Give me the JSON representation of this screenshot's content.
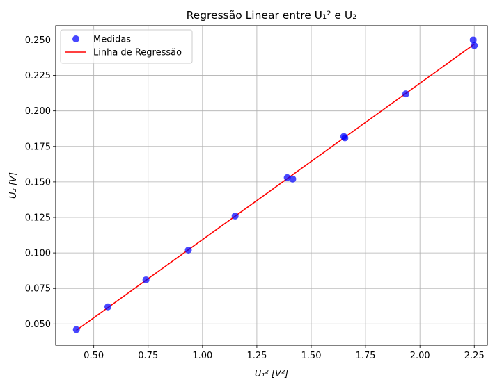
{
  "chart_data": {
    "type": "scatter",
    "title": "Regressão Linear entre U₁² e U₂",
    "xlabel": "U₁² [V²]",
    "ylabel": "U₂ [V]",
    "xlim": [
      0.325,
      2.31
    ],
    "ylim": [
      0.035,
      0.26
    ],
    "xticks": [
      "0.50",
      "0.75",
      "1.00",
      "1.25",
      "1.50",
      "1.75",
      "2.00",
      "2.25"
    ],
    "xtick_values": [
      0.5,
      0.75,
      1.0,
      1.25,
      1.5,
      1.75,
      2.0,
      2.25
    ],
    "yticks": [
      "0.050",
      "0.075",
      "0.100",
      "0.125",
      "0.150",
      "0.175",
      "0.200",
      "0.225",
      "0.250"
    ],
    "ytick_values": [
      0.05,
      0.075,
      0.1,
      0.125,
      0.15,
      0.175,
      0.2,
      0.225,
      0.25
    ],
    "grid": true,
    "legend_position": "top-left",
    "series": [
      {
        "name": "Medidas",
        "kind": "scatter",
        "color": "#0000ff",
        "points": [
          [
            0.42,
            0.046
          ],
          [
            0.565,
            0.062
          ],
          [
            0.74,
            0.081
          ],
          [
            0.935,
            0.102
          ],
          [
            1.15,
            0.126
          ],
          [
            1.39,
            0.153
          ],
          [
            1.415,
            0.152
          ],
          [
            1.65,
            0.182
          ],
          [
            1.655,
            0.181
          ],
          [
            1.935,
            0.212
          ],
          [
            2.245,
            0.25
          ],
          [
            2.25,
            0.246
          ]
        ]
      },
      {
        "name": "Linha de Regressão",
        "kind": "line",
        "color": "#ff0000",
        "points": [
          [
            0.42,
            0.0455
          ],
          [
            2.25,
            0.247
          ]
        ]
      }
    ]
  }
}
